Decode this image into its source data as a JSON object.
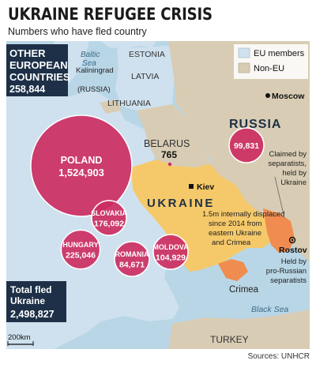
{
  "title": "UKRAINE REFUGEE CRISIS",
  "subtitle": "Numbers who have fled country",
  "source": "Sources: UNHCR",
  "colors": {
    "sea": "#b9d6e6",
    "eu": "#cfe1ee",
    "non_eu": "#d8ccb4",
    "ukraine": "#f5c96a",
    "separatist": "#f08c4f",
    "crimea": "#f08c4f",
    "bubble": "#cc2e62",
    "dark_box": "#1d3047"
  },
  "legend": [
    {
      "label": "EU members",
      "swatch": "#cfe1ee"
    },
    {
      "label": "Non-EU",
      "swatch": "#d8ccb4"
    }
  ],
  "other_box": {
    "line1": "OTHER",
    "line2": "EUROPEAN",
    "line3": "COUNTRIES",
    "value": "258,844"
  },
  "total_box": {
    "line1": "Total fled",
    "line2": "Ukraine",
    "value": "2,498,827"
  },
  "bubbles": [
    {
      "country": "POLAND",
      "value": "1,524,903",
      "count": 1524903
    },
    {
      "country": "SLOVAKIA",
      "value": "176,092",
      "count": 176092
    },
    {
      "country": "HUNGARY",
      "value": "225,046",
      "count": 225046
    },
    {
      "country": "ROMANIA",
      "value": "84,671",
      "count": 84671
    },
    {
      "country": "MOLDOVA",
      "value": "104,929",
      "count": 104929
    },
    {
      "country": "",
      "value": "99,831",
      "count": 99831
    }
  ],
  "belarus": {
    "name": "BELARUS",
    "value": "765"
  },
  "labels": {
    "baltic_sea_1": "Baltic",
    "baltic_sea_2": "Sea",
    "estonia": "ESTONIA",
    "latvia": "LATVIA",
    "lithuania": "LITHUANIA",
    "kaliningrad_1": "Kaliningrad",
    "kaliningrad_2": "(RUSSIA)",
    "moscow": "Moscow",
    "russia": "RUSSIA",
    "kiev": "Kiev",
    "ukraine": "UKRAINE",
    "rostov": "Rostov",
    "crimea": "Crimea",
    "black_sea": "Black Sea",
    "turkey": "TURKEY",
    "scale": "200km"
  },
  "annotations": {
    "displaced": [
      "1.5m internally displaced",
      "since 2014 from",
      "eastern Ukraine",
      "and Crimea"
    ],
    "claimed": [
      "Claimed by",
      "separatists,",
      "held by",
      "Ukraine"
    ],
    "held": [
      "Held by",
      "pro-Russian",
      "separatists"
    ]
  }
}
